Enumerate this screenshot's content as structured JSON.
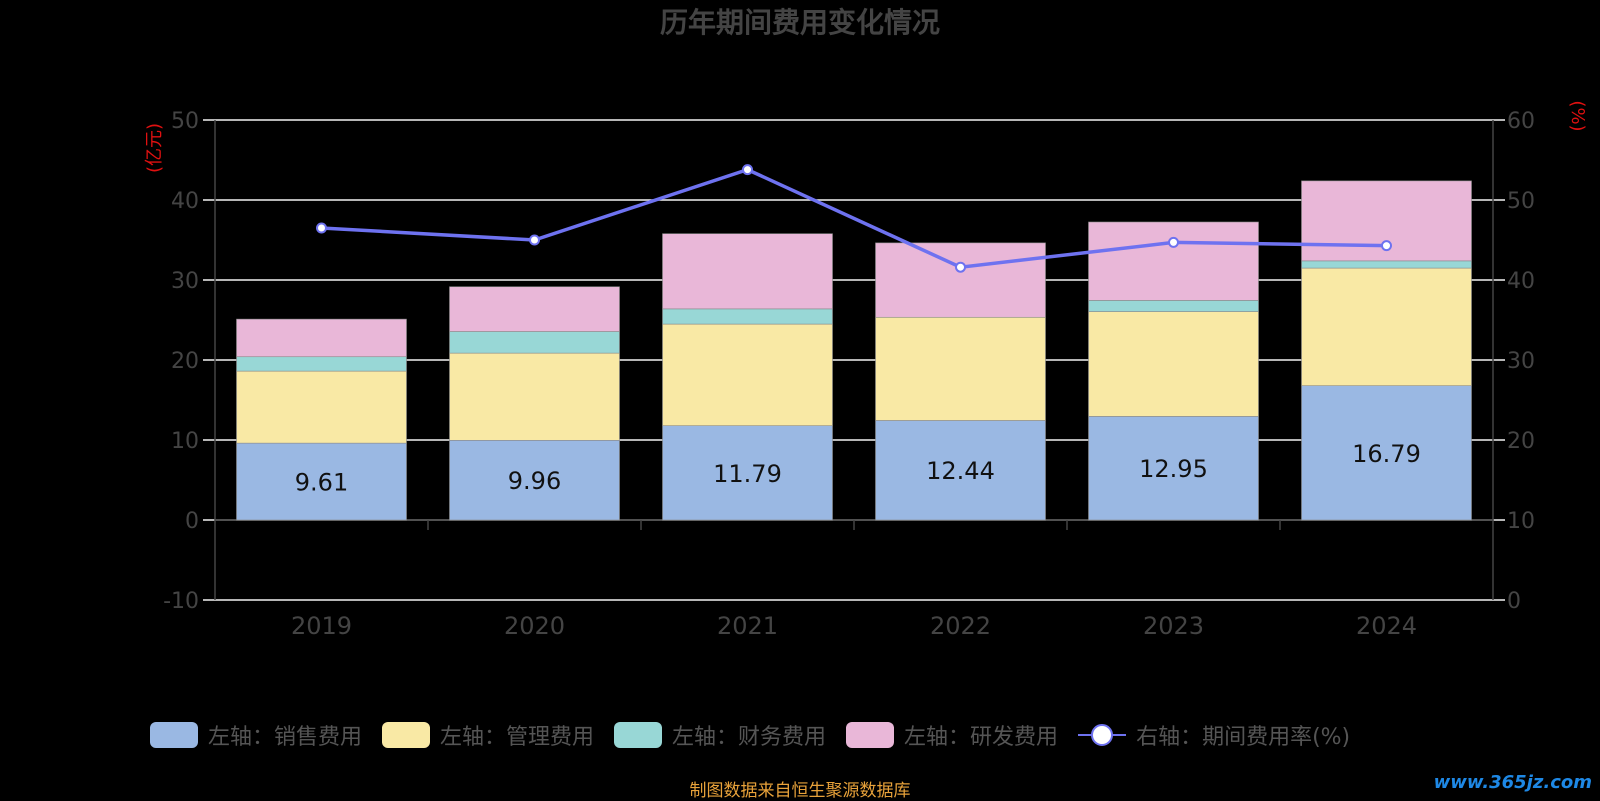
{
  "chart_data": {
    "type": "bar",
    "title": "历年期间费用变化情况",
    "left_axis_unit": "(亿元)",
    "right_axis_unit": "(%)",
    "categories": [
      "2019",
      "2020",
      "2021",
      "2022",
      "2023",
      "2024"
    ],
    "ylim_left": [
      -10,
      50
    ],
    "yticks_left": [
      "50",
      "40",
      "30",
      "20",
      "10",
      "0",
      "-10"
    ],
    "ylim_right": [
      0,
      60
    ],
    "yticks_right": [
      "60",
      "50",
      "40",
      "30",
      "20",
      "10",
      "0"
    ],
    "grid": true,
    "series": [
      {
        "name": "左轴：销售费用",
        "kind": "bar",
        "axis": "left",
        "color": "#9ab8e3",
        "values": [
          9.61,
          9.96,
          11.79,
          12.44,
          12.95,
          16.79
        ],
        "labels": [
          "9.61",
          "9.96",
          "11.79",
          "12.44",
          "12.95",
          "16.79"
        ]
      },
      {
        "name": "左轴：管理费用",
        "kind": "bar",
        "axis": "left",
        "color": "#f9e9a5",
        "values": [
          9.0,
          10.9,
          12.7,
          12.9,
          13.1,
          14.7
        ]
      },
      {
        "name": "左轴：财务费用",
        "kind": "bar",
        "axis": "left",
        "color": "#98d7d6",
        "values": [
          1.8,
          2.7,
          1.9,
          0.0,
          1.4,
          0.9
        ]
      },
      {
        "name": "左轴：研发费用",
        "kind": "bar",
        "axis": "left",
        "color": "#e9b7d8",
        "values": [
          4.7,
          5.6,
          9.4,
          9.3,
          9.8,
          10.0
        ]
      },
      {
        "name": "右轴：期间费用率(%)",
        "kind": "line",
        "axis": "right",
        "color": "#6e72f0",
        "values": [
          46.5,
          45.0,
          53.8,
          41.6,
          44.7,
          44.3
        ]
      }
    ],
    "legend_position": "bottom"
  },
  "footer": {
    "source": "制图数据来自恒生聚源数据库",
    "watermark": "www.365jz.com"
  }
}
